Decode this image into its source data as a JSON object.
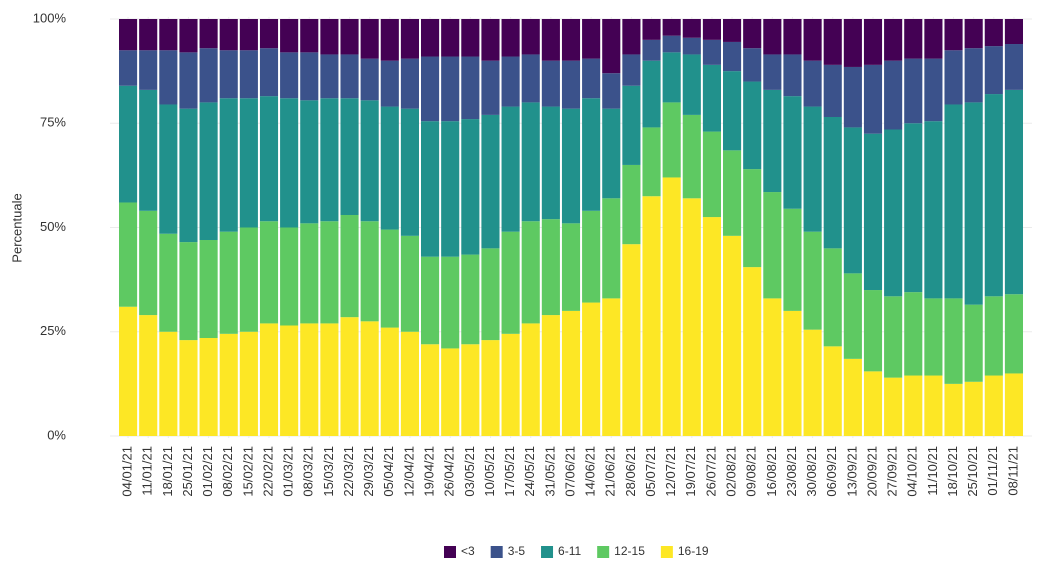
{
  "chart_data": {
    "type": "stacked-bar",
    "y_label": "Percentuale",
    "categories": [
      "04/01/21",
      "11/01/21",
      "18/01/21",
      "25/01/21",
      "01/02/21",
      "08/02/21",
      "15/02/21",
      "22/02/21",
      "01/03/21",
      "08/03/21",
      "15/03/21",
      "22/03/21",
      "29/03/21",
      "05/04/21",
      "12/04/21",
      "19/04/21",
      "26/04/21",
      "03/05/21",
      "10/05/21",
      "17/05/21",
      "24/05/21",
      "31/05/21",
      "07/06/21",
      "14/06/21",
      "21/06/21",
      "28/06/21",
      "05/07/21",
      "12/07/21",
      "19/07/21",
      "26/07/21",
      "02/08/21",
      "09/08/21",
      "16/08/21",
      "23/08/21",
      "30/08/21",
      "06/09/21",
      "13/09/21",
      "20/09/21",
      "27/09/21",
      "04/10/21",
      "11/10/21",
      "18/10/21",
      "25/10/21",
      "01/11/21",
      "08/11/21"
    ],
    "series": [
      {
        "name": "<3",
        "color": "#440154",
        "values": [
          7.5,
          7.5,
          7.5,
          8,
          7,
          7.5,
          7.5,
          7,
          8,
          8,
          8.5,
          8.5,
          9.5,
          10,
          9.5,
          9,
          9,
          9,
          10,
          9,
          8.5,
          10,
          10,
          9.5,
          13,
          8.5,
          5,
          4,
          4.5,
          5,
          5.5,
          7,
          8.5,
          8.5,
          10,
          11,
          11.5,
          11,
          10,
          9.5,
          9.5,
          7.5,
          7,
          6.5,
          6
        ]
      },
      {
        "name": "3-5",
        "color": "#3b528b",
        "values": [
          8.5,
          9.5,
          13,
          13.5,
          13,
          11.5,
          11.5,
          11.5,
          11,
          11.5,
          10.5,
          10.5,
          10,
          11,
          12,
          15.5,
          15.5,
          15,
          13,
          12,
          11.5,
          11,
          11.5,
          9.5,
          8.5,
          7.5,
          5,
          4,
          4,
          6,
          7,
          8,
          8.5,
          10,
          11,
          12.5,
          14.5,
          16.5,
          16.5,
          15.5,
          15,
          13,
          13,
          11.5,
          11
        ]
      },
      {
        "name": "6-11",
        "color": "#21918c",
        "values": [
          28,
          29,
          31,
          32,
          33,
          32,
          31,
          30,
          31,
          29.5,
          29.5,
          28,
          29,
          29.5,
          30.5,
          32.5,
          32.5,
          32.5,
          32,
          30,
          28.5,
          27,
          27.5,
          27,
          21.5,
          19,
          16,
          12,
          14.5,
          16,
          19,
          21,
          24.5,
          27,
          30,
          31.5,
          35,
          37.5,
          40,
          40.5,
          42.5,
          46.5,
          48.5,
          48.5,
          49
        ]
      },
      {
        "name": "12-15",
        "color": "#5ec962",
        "values": [
          25,
          25,
          23.5,
          23.5,
          23.5,
          24.5,
          25,
          24.5,
          23.5,
          24,
          24.5,
          24.5,
          24,
          23.5,
          23,
          21,
          22,
          21.5,
          22,
          24.5,
          24.5,
          23,
          21,
          22,
          24,
          19,
          16.5,
          18,
          20,
          20.5,
          20.5,
          23.5,
          25.5,
          24.5,
          23.5,
          23.5,
          20.5,
          19.5,
          19.5,
          20,
          18.5,
          20.5,
          18.5,
          19,
          19
        ]
      },
      {
        "name": "16-19",
        "color": "#fde725",
        "values": [
          31,
          29,
          25,
          23,
          23.5,
          24.5,
          25,
          27,
          26.5,
          27,
          27,
          28.5,
          27.5,
          26,
          25,
          22,
          21,
          22,
          23,
          24.5,
          27,
          29,
          30,
          32,
          33,
          46,
          57.5,
          62,
          57,
          52.5,
          48,
          40.5,
          33,
          30,
          25.5,
          21.5,
          18.5,
          15.5,
          14,
          14.5,
          14.5,
          12.5,
          13,
          14.5,
          15
        ]
      }
    ],
    "ylim": [
      0,
      100
    ],
    "yticks": [
      {
        "value": 0,
        "label": "0%"
      },
      {
        "value": 25,
        "label": "25%"
      },
      {
        "value": 50,
        "label": "50%"
      },
      {
        "value": 75,
        "label": "75%"
      },
      {
        "value": 100,
        "label": "100%"
      }
    ],
    "grid": true,
    "legend": "bottom"
  }
}
